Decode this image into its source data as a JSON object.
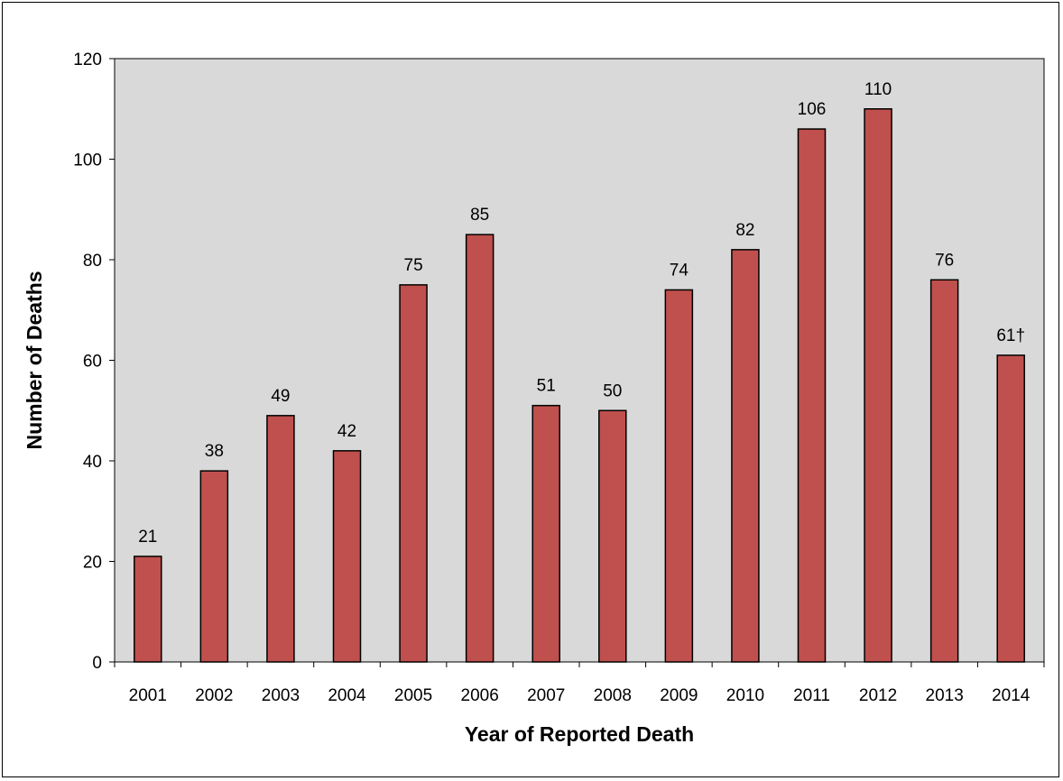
{
  "chart_data": {
    "type": "bar",
    "title": "",
    "xlabel": "Year of Reported Death",
    "ylabel": "Number of Deaths",
    "categories": [
      "2001",
      "2002",
      "2003",
      "2004",
      "2005",
      "2006",
      "2007",
      "2008",
      "2009",
      "2010",
      "2011",
      "2012",
      "2013",
      "2014"
    ],
    "values": [
      21,
      38,
      49,
      42,
      75,
      85,
      51,
      50,
      74,
      82,
      106,
      110,
      76,
      61
    ],
    "data_labels": [
      "21",
      "38",
      "49",
      "42",
      "75",
      "85",
      "51",
      "50",
      "74",
      "82",
      "106",
      "110",
      "76",
      "61†"
    ],
    "ylim": [
      0,
      120
    ],
    "yticks": [
      0,
      20,
      40,
      60,
      80,
      100,
      120
    ],
    "grid": false,
    "legend": "none",
    "colors": {
      "bar_fill": "#c0504d",
      "bar_stroke": "#000000",
      "plot_background": "#d9d9d9"
    }
  }
}
